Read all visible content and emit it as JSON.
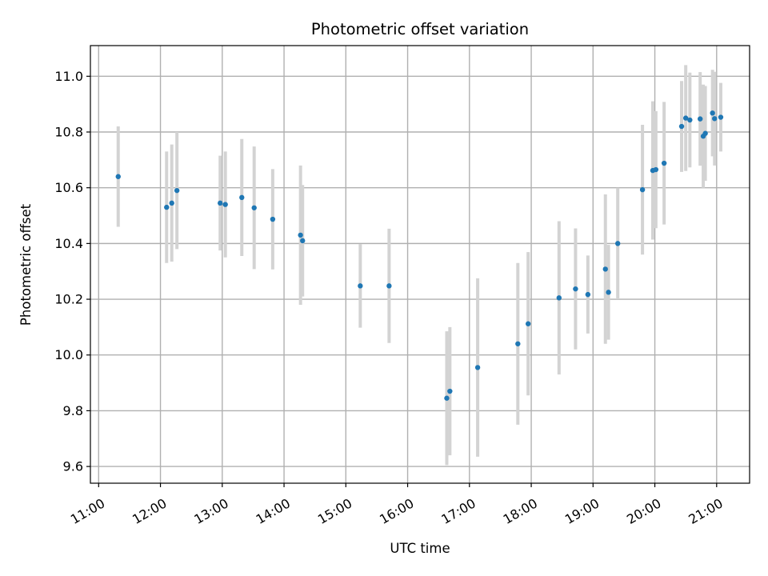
{
  "chart_data": {
    "type": "scatter",
    "title": "Photometric offset variation",
    "xlabel": "UTC time",
    "ylabel": "Photometric offset",
    "grid": true,
    "legend": "none",
    "x_axis": {
      "kind": "time",
      "range": [
        "10:52",
        "21:32"
      ],
      "ticks": [
        "11:00",
        "12:00",
        "13:00",
        "14:00",
        "15:00",
        "16:00",
        "17:00",
        "18:00",
        "19:00",
        "20:00",
        "21:00"
      ]
    },
    "y_axis": {
      "range": [
        9.54,
        11.11
      ],
      "ticks": [
        "9.6",
        "9.8",
        "10.0",
        "10.2",
        "10.4",
        "10.6",
        "10.8",
        "11.0"
      ]
    },
    "colors": {
      "points": "#1f77b4",
      "error_bars": "#d3d3d3",
      "grid": "#b0b0b0"
    },
    "series": [
      {
        "points": [
          {
            "x": "11:19",
            "y": 10.64,
            "err": 0.18
          },
          {
            "x": "12:06",
            "y": 10.53,
            "err": 0.2
          },
          {
            "x": "12:11",
            "y": 10.545,
            "err": 0.21
          },
          {
            "x": "12:16",
            "y": 10.59,
            "err": 0.21
          },
          {
            "x": "12:58",
            "y": 10.545,
            "err": 0.17
          },
          {
            "x": "13:03",
            "y": 10.54,
            "err": 0.19
          },
          {
            "x": "13:19",
            "y": 10.565,
            "err": 0.21
          },
          {
            "x": "13:31",
            "y": 10.528,
            "err": 0.22
          },
          {
            "x": "13:49",
            "y": 10.487,
            "err": 0.18
          },
          {
            "x": "14:16",
            "y": 10.43,
            "err": 0.25
          },
          {
            "x": "14:18",
            "y": 10.41,
            "err": 0.2
          },
          {
            "x": "15:14",
            "y": 10.248,
            "err": 0.15
          },
          {
            "x": "15:42",
            "y": 10.248,
            "err": 0.205
          },
          {
            "x": "16:38",
            "y": 9.845,
            "err": 0.24
          },
          {
            "x": "16:41",
            "y": 9.87,
            "err": 0.23
          },
          {
            "x": "17:08",
            "y": 9.955,
            "err": 0.32
          },
          {
            "x": "17:47",
            "y": 10.04,
            "err": 0.29
          },
          {
            "x": "17:57",
            "y": 10.112,
            "err": 0.257
          },
          {
            "x": "18:27",
            "y": 10.205,
            "err": 0.275
          },
          {
            "x": "18:43",
            "y": 10.237,
            "err": 0.217
          },
          {
            "x": "18:55",
            "y": 10.217,
            "err": 0.14
          },
          {
            "x": "19:12",
            "y": 10.308,
            "err": 0.268
          },
          {
            "x": "19:15",
            "y": 10.225,
            "err": 0.17
          },
          {
            "x": "19:24",
            "y": 10.4,
            "err": 0.2
          },
          {
            "x": "19:48",
            "y": 10.593,
            "err": 0.233
          },
          {
            "x": "19:58",
            "y": 10.662,
            "err": 0.248
          },
          {
            "x": "20:01",
            "y": 10.665,
            "err": 0.21
          },
          {
            "x": "20:09",
            "y": 10.688,
            "err": 0.22
          },
          {
            "x": "20:26",
            "y": 10.82,
            "err": 0.163
          },
          {
            "x": "20:30",
            "y": 10.85,
            "err": 0.19
          },
          {
            "x": "20:34",
            "y": 10.843,
            "err": 0.17
          },
          {
            "x": "20:44",
            "y": 10.847,
            "err": 0.168
          },
          {
            "x": "20:47",
            "y": 10.785,
            "err": 0.185
          },
          {
            "x": "20:49",
            "y": 10.795,
            "err": 0.17
          },
          {
            "x": "20:56",
            "y": 10.868,
            "err": 0.155
          },
          {
            "x": "20:58",
            "y": 10.848,
            "err": 0.168
          },
          {
            "x": "21:04",
            "y": 10.853,
            "err": 0.123
          }
        ]
      }
    ]
  }
}
